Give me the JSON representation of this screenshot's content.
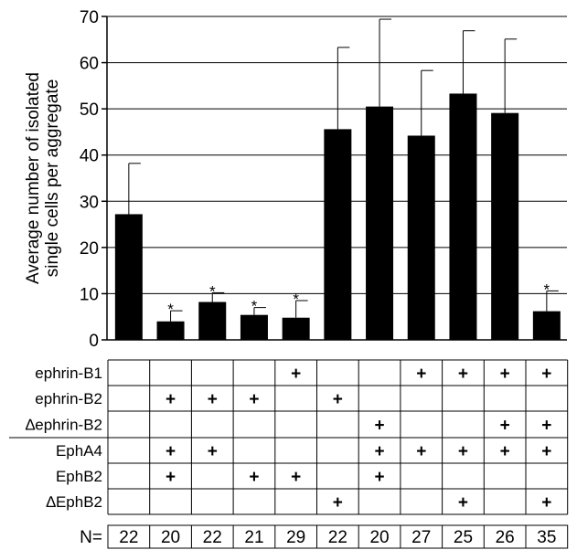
{
  "chart_data": {
    "type": "bar",
    "ylabel_lines": [
      "Average number of isolated",
      "single cells per aggregate"
    ],
    "ylim": [
      0,
      70
    ],
    "yticks": [
      0,
      10,
      20,
      30,
      40,
      50,
      60,
      70
    ],
    "grid": true,
    "bar_color": "#000000",
    "values": [
      27.2,
      4.0,
      8.2,
      5.4,
      4.8,
      45.6,
      50.5,
      44.2,
      53.3,
      49.1,
      6.2
    ],
    "error_upper": [
      38.2,
      6.3,
      10.2,
      7.0,
      8.5,
      63.3,
      69.4,
      58.3,
      66.9,
      65.1,
      10.6
    ],
    "significant": [
      false,
      true,
      true,
      true,
      true,
      false,
      false,
      false,
      false,
      false,
      true
    ],
    "significance_marker": "*",
    "plus_symbol": "+"
  },
  "conditions": [
    {
      "label": "ephrin-B1",
      "marks": [
        false,
        false,
        false,
        false,
        true,
        false,
        false,
        true,
        true,
        true,
        true
      ]
    },
    {
      "label": "ephrin-B2",
      "marks": [
        false,
        true,
        true,
        true,
        false,
        true,
        false,
        false,
        false,
        false,
        false
      ]
    },
    {
      "label": "∆ephrin-B2",
      "marks": [
        false,
        false,
        false,
        false,
        false,
        false,
        true,
        false,
        false,
        true,
        true
      ]
    },
    {
      "label": "EphA4",
      "marks": [
        false,
        true,
        true,
        false,
        false,
        false,
        true,
        true,
        true,
        true,
        true
      ]
    },
    {
      "label": "EphB2",
      "marks": [
        false,
        true,
        false,
        true,
        true,
        false,
        true,
        false,
        false,
        false,
        false
      ]
    },
    {
      "label": "∆EphB2",
      "marks": [
        false,
        false,
        false,
        false,
        false,
        true,
        false,
        false,
        true,
        false,
        true
      ]
    }
  ],
  "n_row": {
    "label": "N=",
    "values": [
      "22",
      "20",
      "22",
      "21",
      "29",
      "22",
      "20",
      "27",
      "25",
      "26",
      "35"
    ]
  }
}
